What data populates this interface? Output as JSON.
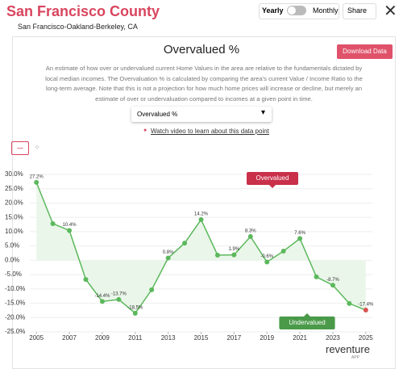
{
  "header": {
    "title": "San Francisco County",
    "subtitle": "San Francisco-Oakland-Berkeley, CA"
  },
  "controls": {
    "yearly": "Yearly",
    "monthly": "Monthly",
    "share": "Share"
  },
  "panel": {
    "title": "Overvalued %",
    "download": "Download Data",
    "description": "An estimate of how over or undervalued current Home Values in the area are relative to the fundamentals dictated by local median incomes. The Overvaluation % is calculated by comparing the area's current Value / Income Ratio to the long-term average. Note that this is not a projection for how much home prices will increase or decline, but merely an estimate of over or undervaluation compared to incomes at a given point in time.",
    "dropdown": "Overvalued %",
    "video_link": "Watch video to learn about this data point"
  },
  "chart_data": {
    "type": "line",
    "x": [
      2005,
      2006,
      2007,
      2008,
      2009,
      2010,
      2011,
      2012,
      2013,
      2014,
      2015,
      2016,
      2017,
      2018,
      2019,
      2020,
      2021,
      2022,
      2023,
      2024,
      2025
    ],
    "values": [
      27.2,
      12.8,
      10.4,
      -6.7,
      -14.4,
      -13.7,
      -18.5,
      -10.3,
      0.8,
      6.0,
      14.2,
      1.8,
      1.9,
      8.3,
      -0.6,
      3.2,
      7.6,
      -5.8,
      -8.7,
      -15.1,
      -17.4
    ],
    "value_labels": [
      "27.2%",
      null,
      "10.4%",
      null,
      "-14.4%",
      "-13.7%",
      "-18.5%",
      null,
      "0.8%",
      null,
      "14.2%",
      null,
      "1.9%",
      "8.3%",
      "-0.6%",
      null,
      "7.6%",
      null,
      "-8.7%",
      null,
      "-17.4%"
    ],
    "color": "#5cb85c",
    "area_color": "#eaf6ea",
    "current_color": "#d9534f",
    "xlim": [
      2004.6,
      2025.4
    ],
    "xticks": [
      2005,
      2007,
      2009,
      2011,
      2013,
      2015,
      2017,
      2019,
      2021,
      2023,
      2025
    ],
    "ylim": [
      -25,
      30
    ],
    "yticks": [
      {
        "value": 30,
        "label": "30.0%"
      },
      {
        "value": 25,
        "label": "25.0%"
      },
      {
        "value": 20,
        "label": "20.0%"
      },
      {
        "value": 15,
        "label": "15.0%"
      },
      {
        "value": 10,
        "label": "10.0%"
      },
      {
        "value": 5,
        "label": "5.0%"
      },
      {
        "value": 0,
        "label": "0.0%"
      },
      {
        "value": -5,
        "label": "-5.0%"
      },
      {
        "value": -10,
        "label": "-10.0%"
      },
      {
        "value": -15,
        "label": "-15.0%"
      },
      {
        "value": -20,
        "label": "-20.0%"
      },
      {
        "value": -25,
        "label": "-25.0%"
      }
    ],
    "grid": true,
    "annotations": [
      {
        "text": "Overvalued",
        "color": "#c9304a"
      },
      {
        "text": "Undervalued",
        "color": "#4a9a4a"
      }
    ]
  },
  "logo": {
    "name": "reventure",
    "sub": "APP"
  }
}
